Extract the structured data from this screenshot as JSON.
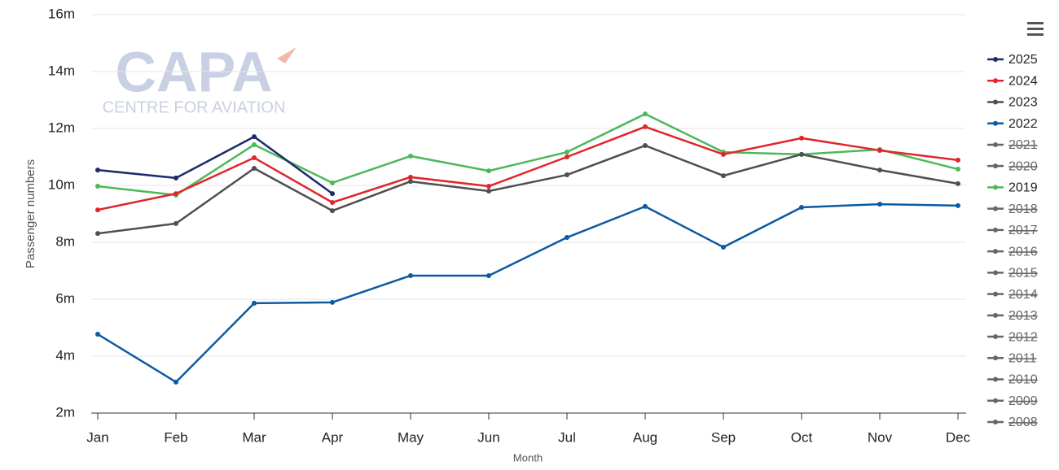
{
  "chart_data": {
    "type": "line",
    "watermark": {
      "title": "CAPA",
      "subtitle": "CENTRE FOR AVIATION"
    },
    "y_label": "Passenger numbers",
    "x_label": "Month",
    "categories": [
      "Jan",
      "Feb",
      "Mar",
      "Apr",
      "May",
      "Jun",
      "Jul",
      "Aug",
      "Sep",
      "Oct",
      "Nov",
      "Dec"
    ],
    "ylim": [
      2000000,
      16000000
    ],
    "yticks": [
      {
        "value": 2000000,
        "label": "2m"
      },
      {
        "value": 4000000,
        "label": "4m"
      },
      {
        "value": 6000000,
        "label": "6m"
      },
      {
        "value": 8000000,
        "label": "8m"
      },
      {
        "value": 10000000,
        "label": "10m"
      },
      {
        "value": 12000000,
        "label": "12m"
      },
      {
        "value": 14000000,
        "label": "14m"
      },
      {
        "value": 16000000,
        "label": "16m"
      }
    ],
    "grid": true,
    "legend": "right",
    "series": [
      {
        "name": "2025",
        "color": "#1b2b6b",
        "values": [
          10540000,
          10260000,
          11710000,
          9710000,
          null,
          null,
          null,
          null,
          null,
          null,
          null,
          null
        ]
      },
      {
        "name": "2024",
        "color": "#e0262c",
        "values": [
          9140000,
          9710000,
          10970000,
          9400000,
          10290000,
          9970000,
          11000000,
          12060000,
          11090000,
          11660000,
          11230000,
          10890000
        ]
      },
      {
        "name": "2023",
        "color": "#4f4f4f",
        "values": [
          8310000,
          8660000,
          10600000,
          9110000,
          10140000,
          9800000,
          10370000,
          11400000,
          10340000,
          11090000,
          10540000,
          10060000
        ]
      },
      {
        "name": "2022",
        "color": "#0b5aa2",
        "values": [
          4770000,
          3090000,
          5860000,
          5890000,
          6830000,
          6830000,
          8170000,
          9260000,
          7830000,
          9230000,
          9340000,
          9290000
        ]
      },
      {
        "name": "2019",
        "color": "#4db85a",
        "values": [
          9970000,
          9660000,
          11430000,
          10090000,
          11030000,
          10510000,
          11170000,
          12510000,
          11170000,
          11090000,
          11260000,
          10570000
        ]
      }
    ],
    "legend_order": [
      "2025",
      "2024",
      "2023",
      "2022",
      "2021",
      "2020",
      "2019",
      "2018",
      "2017",
      "2016",
      "2015",
      "2014",
      "2013",
      "2012",
      "2011",
      "2010",
      "2009",
      "2008"
    ],
    "hidden_series": [
      "2021",
      "2020",
      "2018",
      "2017",
      "2016",
      "2015",
      "2014",
      "2013",
      "2012",
      "2011",
      "2010",
      "2009",
      "2008"
    ]
  }
}
